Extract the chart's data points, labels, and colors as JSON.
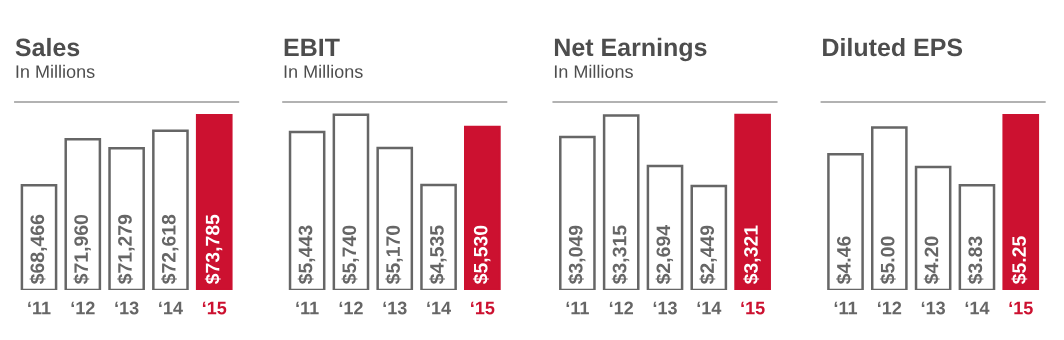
{
  "chart_data": [
    {
      "type": "bar",
      "title": "Sales",
      "subtitle": "In Millions",
      "categories": [
        "‘11",
        "‘12",
        "‘13",
        "‘14",
        "‘15"
      ],
      "values": [
        68466,
        71960,
        71279,
        72618,
        73785
      ],
      "value_labels": [
        "$68,466",
        "$71,960",
        "$71,279",
        "$72,618",
        "$73,785"
      ],
      "colors": [
        "#ffffff",
        "#ffffff",
        "#ffffff",
        "#ffffff",
        "#cc1130"
      ],
      "ylim": [
        60500,
        74800
      ]
    },
    {
      "type": "bar",
      "title": "EBIT",
      "subtitle": "In Millions",
      "categories": [
        "‘11",
        "‘12",
        "‘13",
        "‘14",
        "‘15"
      ],
      "values": [
        5443,
        5740,
        5170,
        4535,
        5530
      ],
      "value_labels": [
        "$5,443",
        "$5,740",
        "$5,170",
        "$4,535",
        "$5,530"
      ],
      "colors": [
        "#ffffff",
        "#ffffff",
        "#ffffff",
        "#ffffff",
        "#cc1130"
      ],
      "ylim": [
        2730,
        5960
      ]
    },
    {
      "type": "bar",
      "title": "Net Earnings",
      "subtitle": "In Millions",
      "categories": [
        "‘11",
        "‘12",
        "‘13",
        "‘14",
        "‘15"
      ],
      "values": [
        3049,
        3315,
        2694,
        2449,
        3321
      ],
      "value_labels": [
        "$3,049",
        "$3,315",
        "$2,694",
        "$2,449",
        "$3,321"
      ],
      "colors": [
        "#ffffff",
        "#ffffff",
        "#ffffff",
        "#ffffff",
        "#cc1130"
      ],
      "ylim": [
        1170,
        3480
      ]
    },
    {
      "type": "bar",
      "title": "Diluted EPS",
      "categories": [
        "‘11",
        "‘12",
        "‘13",
        "‘14",
        "‘15"
      ],
      "values": [
        4.46,
        5.0,
        4.2,
        3.83,
        5.25
      ],
      "value_labels": [
        "$4.46",
        "$5.00",
        "$4.20",
        "$3.83",
        "$5.25"
      ],
      "colors": [
        "#ffffff",
        "#ffffff",
        "#ffffff",
        "#ffffff",
        "#cc1130"
      ],
      "ylim": [
        1.7,
        5.52
      ]
    }
  ]
}
